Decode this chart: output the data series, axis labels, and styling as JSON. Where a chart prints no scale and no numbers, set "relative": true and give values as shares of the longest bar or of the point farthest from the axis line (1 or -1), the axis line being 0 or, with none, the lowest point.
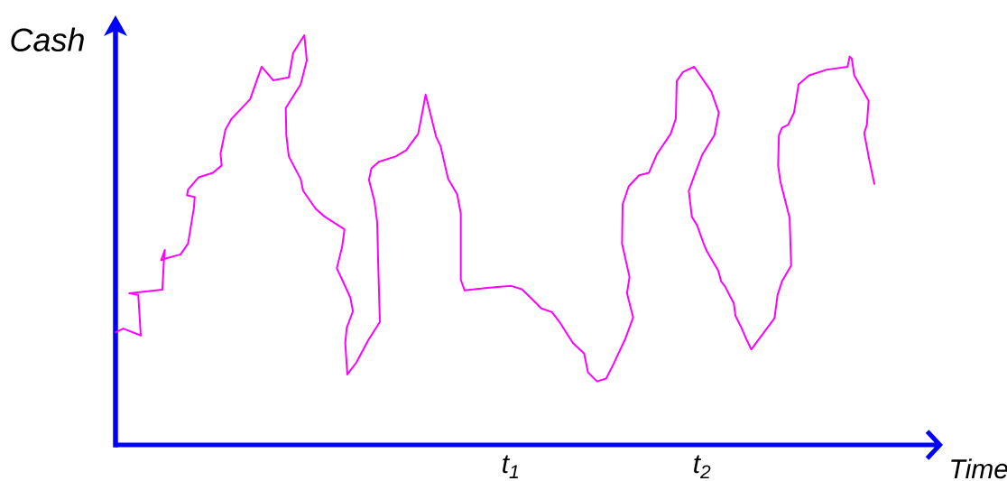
{
  "chart_data": {
    "type": "line",
    "xlabel": "Time",
    "ylabel": "Cash",
    "relative": true,
    "line_style": "solid",
    "xlim": [
      -1.066,
      3.236
    ],
    "xticks": [
      {
        "value": 1,
        "label": "t$_{1}$"
      },
      {
        "value": 2,
        "label": "t$_{2}$"
      }
    ],
    "x": [
      -1.065,
      -1.025,
      -0.934,
      -0.947,
      -0.994,
      -0.821,
      -0.813,
      -0.808,
      -0.827,
      -0.797,
      -0.726,
      -0.687,
      -0.656,
      -0.652,
      -0.692,
      -0.687,
      -0.632,
      -0.557,
      -0.511,
      -0.517,
      -0.491,
      -0.459,
      -0.362,
      -0.302,
      -0.242,
      -0.16,
      -0.137,
      -0.079,
      -0.066,
      -0.098,
      -0.176,
      -0.173,
      -0.16,
      -0.098,
      -0.085,
      -0.019,
      0.028,
      0.131,
      0.119,
      0.091,
      0.119,
      0.162,
      0.175,
      0.143,
      0.135,
      0.146,
      0.193,
      0.256,
      0.316,
      0.307,
      0.302,
      0.288,
      0.259,
      0.272,
      0.311,
      0.398,
      0.453,
      0.516,
      0.539,
      0.555,
      0.61,
      0.633,
      0.673,
      0.72,
      0.739,
      0.739,
      0.759,
      0.877,
      1.003,
      1.058,
      1.105,
      1.16,
      1.216,
      1.255,
      1.325,
      1.384,
      1.404,
      1.451,
      1.499,
      1.538,
      1.6,
      1.64,
      1.608,
      1.621,
      1.582,
      1.585,
      1.617,
      1.671,
      1.722,
      1.766,
      1.836,
      1.863,
      1.868,
      1.9,
      1.959,
      2.049,
      2.088,
      2.065,
      2.001,
      1.962,
      1.931,
      1.947,
      1.975,
      2.009,
      2.025,
      2.085,
      2.1,
      2.119,
      2.166,
      2.175,
      2.206,
      2.23,
      2.258,
      2.379,
      2.395,
      2.418,
      2.466,
      2.458,
      2.41,
      2.398,
      2.402,
      2.418,
      2.45,
      2.481,
      2.505,
      2.56,
      2.654,
      2.761,
      2.772,
      2.783,
      2.796,
      2.871,
      2.862,
      2.848,
      2.874,
      2.901
    ],
    "series": [
      {
        "color": "#ff00ff",
        "values": [
          0.275,
          0.284,
          0.267,
          0.366,
          0.37,
          0.379,
          0.449,
          0.476,
          0.451,
          0.456,
          0.465,
          0.491,
          0.579,
          0.605,
          0.609,
          0.623,
          0.653,
          0.664,
          0.682,
          0.711,
          0.77,
          0.796,
          0.844,
          0.923,
          0.89,
          0.897,
          0.957,
          1.0,
          0.939,
          0.88,
          0.822,
          0.756,
          0.704,
          0.649,
          0.62,
          0.576,
          0.557,
          0.526,
          0.484,
          0.431,
          0.403,
          0.359,
          0.326,
          0.286,
          0.249,
          0.172,
          0.201,
          0.256,
          0.3,
          0.447,
          0.543,
          0.594,
          0.647,
          0.675,
          0.691,
          0.704,
          0.719,
          0.759,
          0.814,
          0.855,
          0.752,
          0.73,
          0.649,
          0.612,
          0.565,
          0.403,
          0.377,
          0.383,
          0.388,
          0.38,
          0.359,
          0.333,
          0.324,
          0.3,
          0.249,
          0.223,
          0.177,
          0.155,
          0.162,
          0.198,
          0.26,
          0.311,
          0.37,
          0.41,
          0.491,
          0.587,
          0.631,
          0.658,
          0.664,
          0.711,
          0.759,
          0.796,
          0.888,
          0.91,
          0.923,
          0.862,
          0.811,
          0.756,
          0.708,
          0.66,
          0.62,
          0.557,
          0.535,
          0.491,
          0.473,
          0.425,
          0.399,
          0.388,
          0.346,
          0.315,
          0.286,
          0.26,
          0.233,
          0.309,
          0.366,
          0.399,
          0.438,
          0.554,
          0.642,
          0.682,
          0.756,
          0.774,
          0.781,
          0.811,
          0.88,
          0.902,
          0.916,
          0.923,
          0.948,
          0.943,
          0.902,
          0.84,
          0.781,
          0.761,
          0.697,
          0.637
        ]
      }
    ]
  }
}
